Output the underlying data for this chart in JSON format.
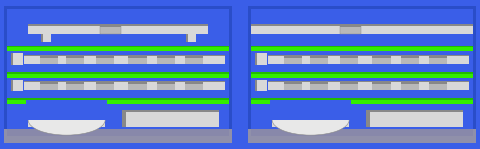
{
  "fig_width": 4.8,
  "fig_height": 1.49,
  "dpi": 100,
  "blue_bg": "#3a5ee8",
  "blue_wall_dark": "#2a4dc8",
  "blue_wall_light": "#4a70f0",
  "blue_inner": "#4060e8",
  "green_bright": "#33ee00",
  "green_dark": "#22bb00",
  "gray_light": "#d8d8d8",
  "gray_mid": "#b8b8b8",
  "gray_dark": "#888888",
  "gray_top": "#999999",
  "white_ish": "#e8e8e8",
  "bottom_strip": "#8888aa",
  "purple_gray": "#9090aa"
}
